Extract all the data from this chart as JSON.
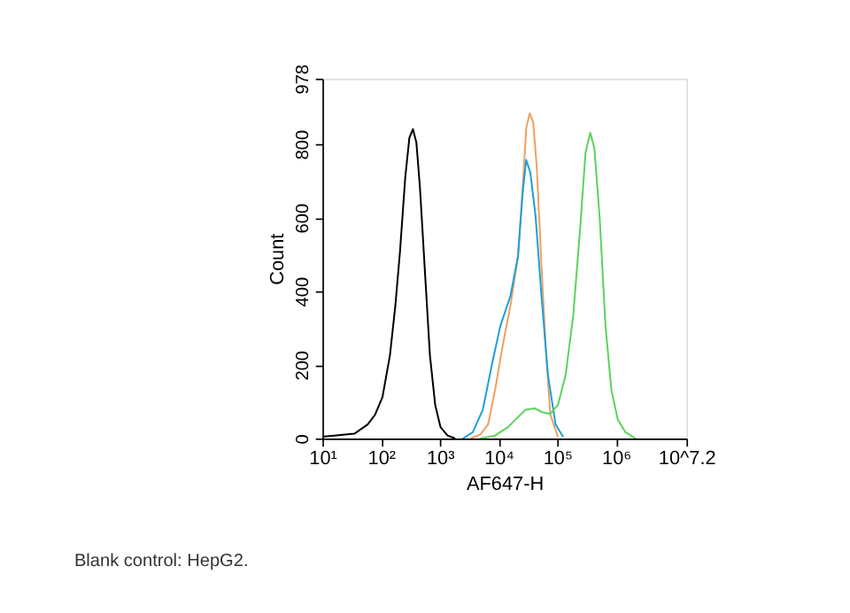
{
  "chart_data": {
    "type": "line",
    "xlabel": "AF647-H",
    "ylabel": "Count",
    "log": "x",
    "xlim": [
      10,
      15848932
    ],
    "ylim": [
      0,
      978
    ],
    "xticks": [
      {
        "value": 10,
        "label": "10¹"
      },
      {
        "value": 100,
        "label": "10²"
      },
      {
        "value": 1000,
        "label": "10³"
      },
      {
        "value": 10000,
        "label": "10⁴"
      },
      {
        "value": 100000,
        "label": "10⁵"
      },
      {
        "value": 1000000,
        "label": "10⁶"
      },
      {
        "value": 15848932,
        "label": "10^7.2"
      }
    ],
    "yticks": [
      0,
      200,
      400,
      600,
      800,
      978
    ],
    "grid": false,
    "legend": false,
    "marker": "none",
    "line_style": "solid",
    "annotations": [
      "Blank control: HepG2."
    ],
    "series": [
      {
        "color": "#000000",
        "x": [
          10,
          16,
          35,
          59,
          79,
          105,
          141,
          174,
          209,
          257,
          302,
          347,
          398,
          457,
          562,
          676,
          832,
          1023,
          1349,
          1820
        ],
        "values": [
          5,
          8,
          13,
          38,
          65,
          112,
          226,
          360,
          508,
          710,
          817,
          841,
          804,
          683,
          441,
          226,
          91,
          31,
          8,
          0
        ]
      },
      {
        "color": "#f0a060",
        "x": [
          3311,
          4898,
          6607,
          8710,
          11749,
          15849,
          21380,
          25704,
          29512,
          33884,
          38905,
          44668,
          53703,
          63096,
          75858,
          102329
        ],
        "values": [
          0,
          11,
          38,
          132,
          253,
          360,
          495,
          683,
          844,
          884,
          858,
          737,
          468,
          253,
          65,
          4
        ]
      },
      {
        "color": "#1ca0dc",
        "x": [
          2455,
          3631,
          5370,
          7943,
          10715,
          15849,
          21380,
          25704,
          29512,
          34674,
          42658,
          53703,
          69183,
          93325,
          125893
        ],
        "values": [
          0,
          17,
          78,
          212,
          306,
          387,
          495,
          669,
          757,
          723,
          602,
          387,
          172,
          38,
          4
        ]
      },
      {
        "color": "#5cd35c",
        "x": [
          4898,
          8710,
          14454,
          21380,
          28840,
          40738,
          56234,
          75858,
          102329,
          138038,
          186209,
          245471,
          301995,
          363078,
          426580,
          524807,
          660693,
          831764,
          1071519,
          1445440,
          2137962
        ],
        "values": [
          0,
          8,
          31,
          58,
          78,
          82,
          71,
          67,
          91,
          172,
          333,
          575,
          777,
          831,
          790,
          602,
          306,
          132,
          51,
          17,
          0
        ]
      }
    ]
  }
}
